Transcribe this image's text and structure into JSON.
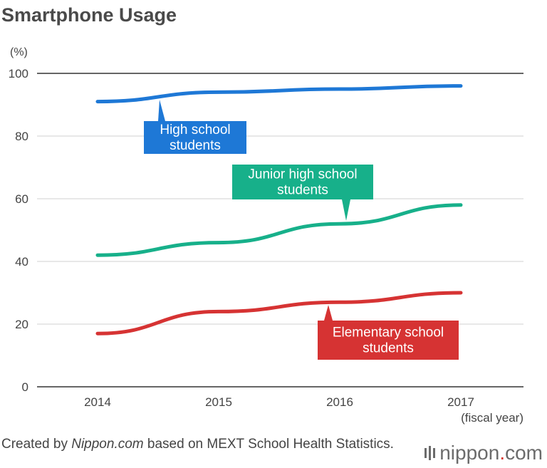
{
  "chart_data": {
    "type": "line",
    "title": "Smartphone Usage",
    "ylabel": "(%)",
    "xlabel": "(fiscal year)",
    "categories": [
      "2014",
      "2015",
      "2016",
      "2017"
    ],
    "ylim": [
      0,
      100
    ],
    "yticks": [
      0,
      20,
      40,
      60,
      80,
      100
    ],
    "grid": true,
    "series": [
      {
        "name": "High school students",
        "label_lines": [
          "High school",
          "students"
        ],
        "color": "#1e78d6",
        "values": [
          91,
          94,
          95,
          96
        ]
      },
      {
        "name": "Junior high school students",
        "label_lines": [
          "Junior high school",
          "students"
        ],
        "color": "#17b08a",
        "values": [
          42,
          46,
          52,
          58
        ]
      },
      {
        "name": "Elementary school students",
        "label_lines": [
          "Elementary school",
          "students"
        ],
        "color": "#d63333",
        "values": [
          17,
          24,
          27,
          30
        ]
      }
    ]
  },
  "footer": {
    "prefix": "Created by ",
    "source_name": "Nippon.com",
    "suffix": " based on MEXT School Health Statistics."
  },
  "logo": {
    "name": "nippon",
    "tld": "com",
    "dot": "."
  }
}
